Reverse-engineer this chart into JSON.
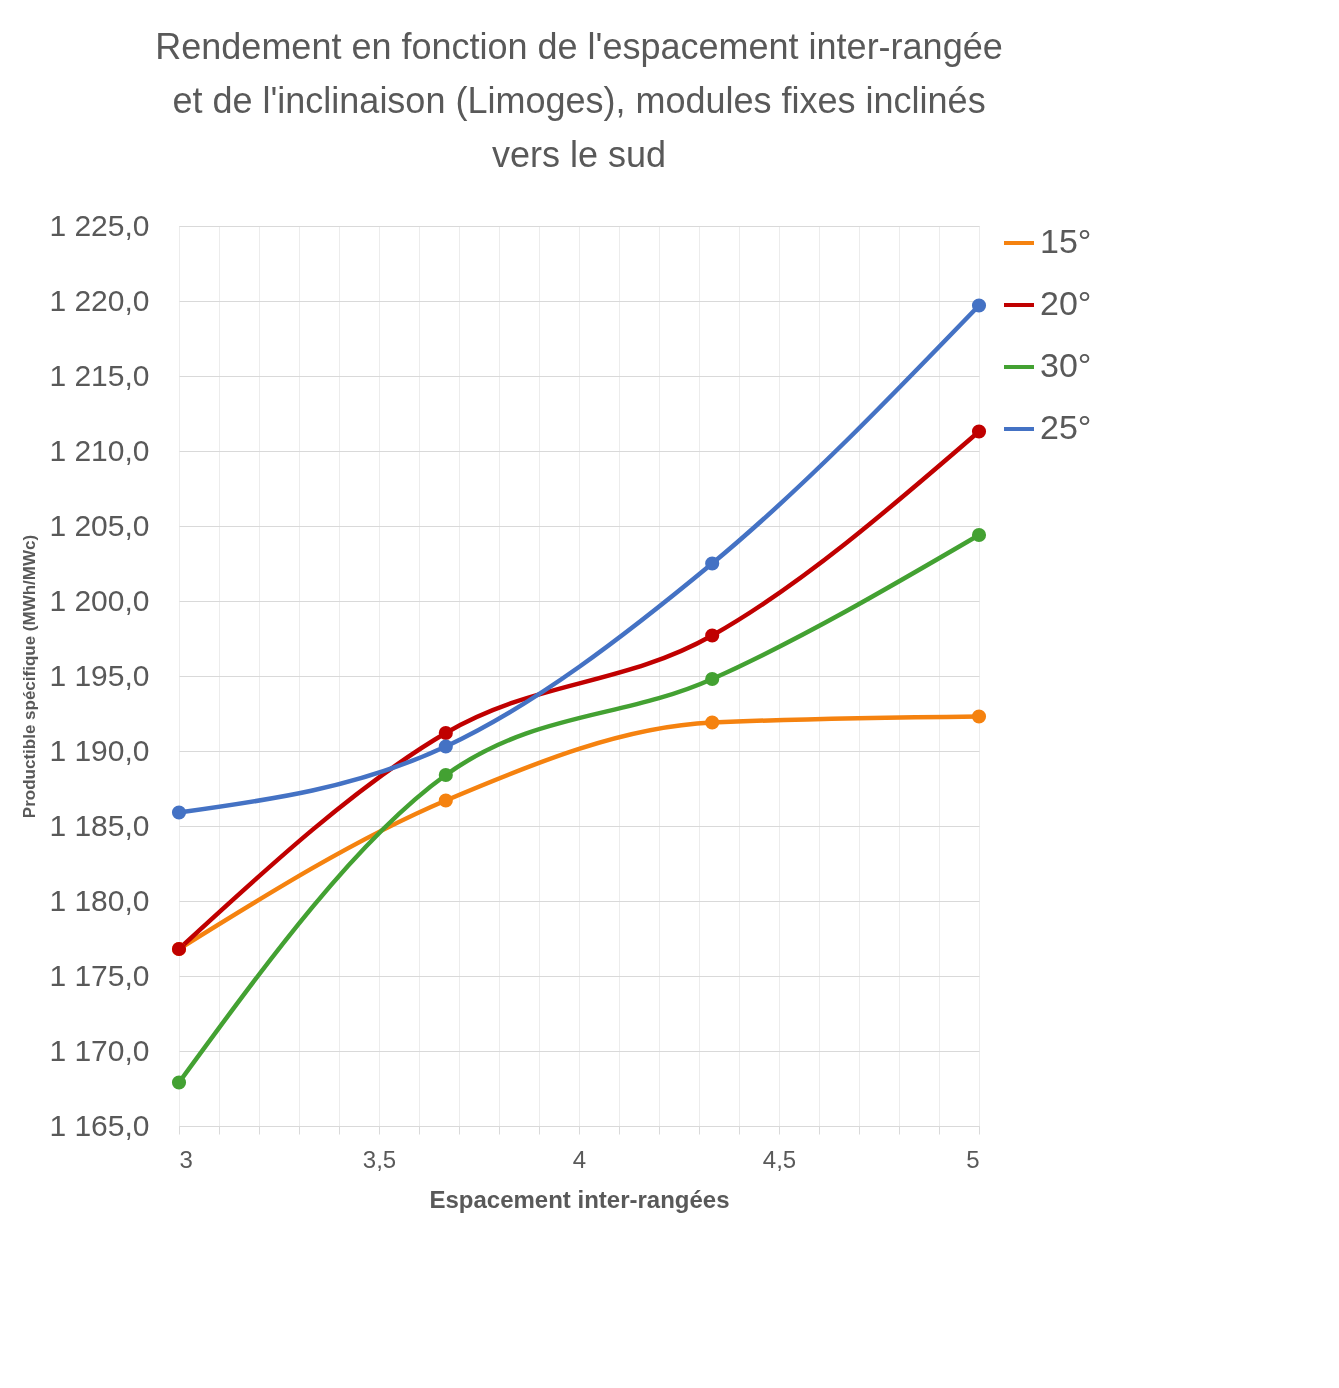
{
  "chart_data": {
    "type": "line",
    "title": "Rendement en fonction de l'espacement inter-rangée\net de l'inclinaison (Limoges), modules fixes inclinés\nvers le sud",
    "xlabel": "Espacement inter-rangées",
    "ylabel": "Productible spécifique (MWh/MWc)",
    "x": [
      3,
      3.667,
      4.333,
      5
    ],
    "series": [
      {
        "name": "15°",
        "color": "#f5820f",
        "values": [
          1176.8,
          1186.7,
          1191.9,
          1192.3
        ]
      },
      {
        "name": "20°",
        "color": "#c00000",
        "values": [
          1176.8,
          1191.2,
          1197.7,
          1211.3
        ]
      },
      {
        "name": "30°",
        "color": "#43a132",
        "values": [
          1167.9,
          1188.4,
          1194.8,
          1204.4
        ]
      },
      {
        "name": "25°",
        "color": "#4472c4",
        "values": [
          1185.9,
          1190.3,
          1202.5,
          1219.7
        ]
      }
    ],
    "xlim": [
      3,
      5
    ],
    "xticks": [
      3,
      {
        "value": 3.1,
        "label": null
      },
      {
        "value": 3.2,
        "label": null
      },
      {
        "value": 3.3,
        "label": null
      },
      {
        "value": 3.4,
        "label": null
      },
      {
        "value": 3.5,
        "label": "3,5"
      },
      {
        "value": 3.6,
        "label": null
      },
      {
        "value": 3.7,
        "label": null
      },
      {
        "value": 3.8,
        "label": null
      },
      {
        "value": 3.9,
        "label": null
      },
      4,
      {
        "value": 4.1,
        "label": null
      },
      {
        "value": 4.2,
        "label": null
      },
      {
        "value": 4.3,
        "label": null
      },
      {
        "value": 4.4,
        "label": null
      },
      {
        "value": 4.5,
        "label": "4,5"
      },
      {
        "value": 4.6,
        "label": null
      },
      {
        "value": 4.7,
        "label": null
      },
      {
        "value": 4.8,
        "label": null
      },
      {
        "value": 4.9,
        "label": null
      },
      5
    ],
    "ylim": [
      1165,
      1225
    ],
    "yticks": [
      {
        "value": 1165,
        "label": "1 165,0"
      },
      {
        "value": 1170,
        "label": "1 170,0"
      },
      {
        "value": 1175,
        "label": "1 175,0"
      },
      {
        "value": 1180,
        "label": "1 180,0"
      },
      {
        "value": 1185,
        "label": "1 185,0"
      },
      {
        "value": 1190,
        "label": "1 190,0"
      },
      {
        "value": 1195,
        "label": "1 195,0"
      },
      {
        "value": 1200,
        "label": "1 200,0"
      },
      {
        "value": 1205,
        "label": "1 205,0"
      },
      {
        "value": 1210,
        "label": "1 210,0"
      },
      {
        "value": 1215,
        "label": "1 215,0"
      },
      {
        "value": 1220,
        "label": "1 220,0"
      },
      {
        "value": 1225,
        "label": "1 225,0"
      }
    ],
    "grid": true,
    "legend": "right",
    "marker": "circle",
    "line_style": "solid"
  }
}
